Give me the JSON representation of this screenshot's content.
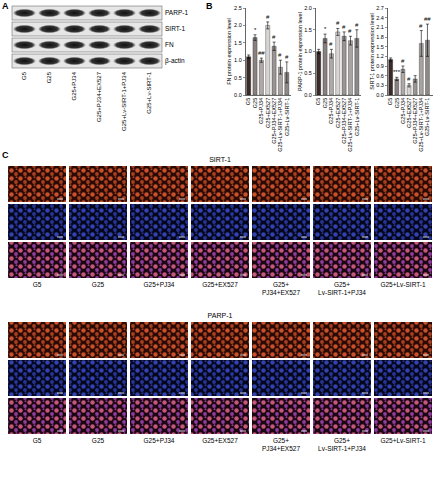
{
  "panel_labels": [
    "A",
    "B",
    "C"
  ],
  "western_blot": {
    "proteins": [
      "PARP-1",
      "SIRT-1",
      "FN",
      "β-actin"
    ],
    "lanes": [
      "G5",
      "G25",
      "G25+PJ34",
      "G25+PJ34+EX527",
      "G25+Lv-SIRT-1+PJ34",
      "G25+Lv-SIRT-1"
    ]
  },
  "chart_data": [
    {
      "type": "bar",
      "y_label": "FN protein expression level",
      "categories": [
        "G5",
        "G25",
        "G25+PJ34",
        "G25+EX527",
        "G25+PJ34+EX527",
        "G25+Lv-SIRT-1+PJ34",
        "G25+Lv-SIRT-1"
      ],
      "values": [
        1.1,
        1.65,
        1.0,
        2.0,
        1.4,
        0.8,
        0.65
      ],
      "errors": [
        0.05,
        0.08,
        0.06,
        0.1,
        0.12,
        0.2,
        0.3
      ],
      "significance": [
        null,
        "*",
        "##",
        "#",
        "#",
        "#",
        "#"
      ],
      "colors": [
        "#3a2a2a",
        "#8a8080",
        "#b0a8a8",
        "#d8d4d4",
        "#9a9494",
        "#a8a2a2",
        "#8e8888"
      ],
      "ylim": [
        0,
        2.5
      ],
      "yticks": [
        {
          "value": 0,
          "label": "0.0"
        },
        0.5,
        {
          "value": 1,
          "label": "1.0"
        },
        1.5,
        {
          "value": 2,
          "label": "2.0"
        },
        2.5
      ]
    },
    {
      "type": "bar",
      "y_label": "PARP-1 protein expression level",
      "categories": [
        "G5",
        "G25",
        "G25+PJ34",
        "G25+EX527",
        "G25+PJ34+EX527",
        "G25+Lv-SIRT-1+PJ34",
        "G25+Lv-SIRT-1"
      ],
      "values": [
        1.0,
        1.3,
        0.95,
        1.45,
        1.35,
        1.25,
        1.3
      ],
      "errors": [
        0.05,
        0.1,
        0.1,
        0.08,
        0.1,
        0.1,
        0.2
      ],
      "significance": [
        null,
        "*",
        "#",
        "#",
        "#",
        "#",
        "#"
      ],
      "colors": [
        "#3a2a2a",
        "#8a8080",
        "#b0a8a8",
        "#d8d4d4",
        "#9a9494",
        "#a8a2a2",
        "#8e8888"
      ],
      "ylim": [
        0,
        2
      ],
      "yticks": [
        {
          "value": 0,
          "label": "0.0"
        },
        0.5,
        {
          "value": 1,
          "label": "1.0"
        },
        1.5,
        {
          "value": 2,
          "label": "2.0"
        }
      ]
    },
    {
      "type": "bar",
      "y_label": "SIRT-1 protein expression level",
      "categories": [
        "G5",
        "G25",
        "G25+PJ34",
        "G25+EX527",
        "G25+PJ34+EX527",
        "G25+Lv-SIRT-1+PJ34",
        "G25+Lv-SIRT-1"
      ],
      "values": [
        1.1,
        0.5,
        0.8,
        0.3,
        0.5,
        1.6,
        1.7
      ],
      "errors": [
        0.05,
        0.05,
        0.1,
        0.05,
        0.1,
        0.4,
        0.5
      ],
      "significance": [
        null,
        "***",
        "#",
        "#",
        null,
        "#",
        "##"
      ],
      "colors": [
        "#3a2a2a",
        "#8a8080",
        "#b0a8a8",
        "#d8d4d4",
        "#9a9494",
        "#a8a2a2",
        "#8e8888"
      ],
      "ylim": [
        0,
        2.7
      ],
      "yticks": [
        {
          "value": 0,
          "label": "0.0"
        },
        0.3,
        0.6,
        0.9,
        1.2,
        1.5,
        1.8,
        2.1,
        2.4,
        2.7
      ]
    }
  ],
  "immunofluorescence": [
    {
      "title": "SIRT-1",
      "groups": [
        [
          "G5"
        ],
        [
          "G25"
        ],
        [
          "G25+PJ34"
        ],
        [
          "G25+EX527"
        ],
        [
          "G25+",
          "PJ34+EX527"
        ],
        [
          "G25+",
          "Lv-SIRT-1+PJ34"
        ],
        [
          "G25+Lv-SIRT-1"
        ]
      ]
    },
    {
      "title": "PARP-1",
      "groups": [
        [
          "G5"
        ],
        [
          "G25"
        ],
        [
          "G25+PJ34"
        ],
        [
          "G25+EX527"
        ],
        [
          "G25+",
          "PJ34+EX527"
        ],
        [
          "G25+",
          "Lv-SIRT-1+PJ34"
        ],
        [
          "G25+Lv-SIRT-1"
        ]
      ]
    }
  ]
}
